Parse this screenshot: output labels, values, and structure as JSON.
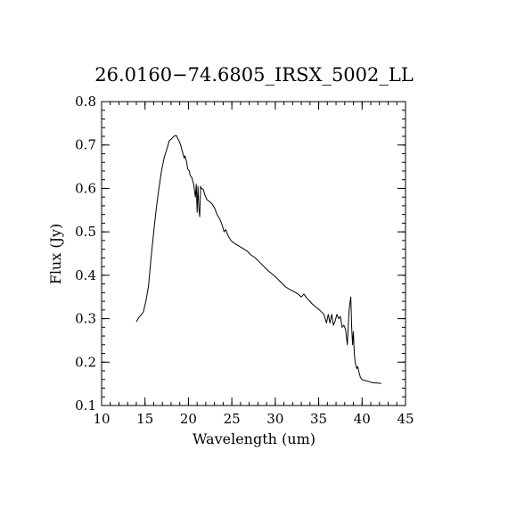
{
  "chart_data": {
    "type": "line",
    "title": "26.0160−74.6805_IRSX_5002_LL",
    "xlabel": "Wavelength (um)",
    "ylabel": "Flux (Jy)",
    "xlim": [
      10,
      45
    ],
    "ylim": [
      0.1,
      0.8
    ],
    "x_ticks": [
      10,
      15,
      20,
      25,
      30,
      35,
      40,
      45
    ],
    "x_tick_labels": [
      "10",
      "15",
      "20",
      "25",
      "30",
      "35",
      "40",
      "45"
    ],
    "y_ticks": [
      0.1,
      0.2,
      0.3,
      0.4,
      0.5,
      0.6,
      0.7,
      0.8
    ],
    "y_tick_labels": [
      "0.1",
      "0.2",
      "0.3",
      "0.4",
      "0.5",
      "0.6",
      "0.7",
      "0.8"
    ],
    "grid": false,
    "legend": "none",
    "line_color": "#000000",
    "series": [
      {
        "x": [
          14.0,
          14.3,
          14.8,
          15.1,
          15.4,
          15.7,
          16.0,
          16.3,
          16.6,
          16.9,
          17.2,
          17.5,
          17.8,
          18.0,
          18.3,
          18.6,
          18.9,
          19.1,
          19.3,
          19.5,
          19.6,
          19.8,
          19.9,
          20.1,
          20.2,
          20.4,
          20.6,
          20.8,
          20.9,
          21.0,
          21.1,
          21.2,
          21.3,
          21.4,
          21.5,
          21.7,
          21.9,
          22.1,
          22.4,
          22.7,
          23.0,
          23.3,
          23.6,
          23.9,
          24.1,
          24.3,
          24.6,
          24.9,
          25.2,
          25.6,
          26.0,
          26.4,
          26.8,
          27.2,
          27.7,
          28.2,
          28.7,
          29.2,
          29.7,
          30.2,
          30.7,
          31.2,
          31.7,
          32.2,
          32.6,
          33.0,
          33.3,
          33.6,
          33.9,
          34.2,
          34.5,
          34.8,
          35.2,
          35.6,
          35.9,
          36.1,
          36.3,
          36.5,
          36.7,
          36.9,
          37.1,
          37.3,
          37.5,
          37.7,
          37.9,
          38.1,
          38.3,
          38.5,
          38.7,
          38.8,
          38.9,
          39.0,
          39.1,
          39.2,
          39.3,
          39.4,
          39.5,
          39.6,
          39.8,
          40.0,
          40.2,
          40.5,
          40.8,
          41.1,
          41.5,
          41.8,
          42.2
        ],
        "y": [
          0.293,
          0.303,
          0.315,
          0.34,
          0.375,
          0.44,
          0.5,
          0.555,
          0.6,
          0.64,
          0.67,
          0.69,
          0.71,
          0.713,
          0.72,
          0.722,
          0.71,
          0.7,
          0.685,
          0.67,
          0.675,
          0.66,
          0.645,
          0.64,
          0.63,
          0.625,
          0.61,
          0.58,
          0.61,
          0.545,
          0.605,
          0.555,
          0.535,
          0.605,
          0.6,
          0.598,
          0.585,
          0.575,
          0.57,
          0.565,
          0.555,
          0.54,
          0.53,
          0.515,
          0.5,
          0.505,
          0.49,
          0.48,
          0.475,
          0.47,
          0.465,
          0.46,
          0.455,
          0.447,
          0.44,
          0.43,
          0.42,
          0.41,
          0.402,
          0.393,
          0.383,
          0.373,
          0.367,
          0.362,
          0.357,
          0.35,
          0.357,
          0.348,
          0.342,
          0.335,
          0.33,
          0.325,
          0.318,
          0.31,
          0.29,
          0.31,
          0.29,
          0.31,
          0.285,
          0.295,
          0.31,
          0.3,
          0.305,
          0.28,
          0.285,
          0.275,
          0.24,
          0.32,
          0.35,
          0.28,
          0.24,
          0.27,
          0.22,
          0.2,
          0.19,
          0.185,
          0.19,
          0.18,
          0.165,
          0.16,
          0.158,
          0.157,
          0.155,
          0.153,
          0.152,
          0.152,
          0.151
        ]
      }
    ]
  }
}
